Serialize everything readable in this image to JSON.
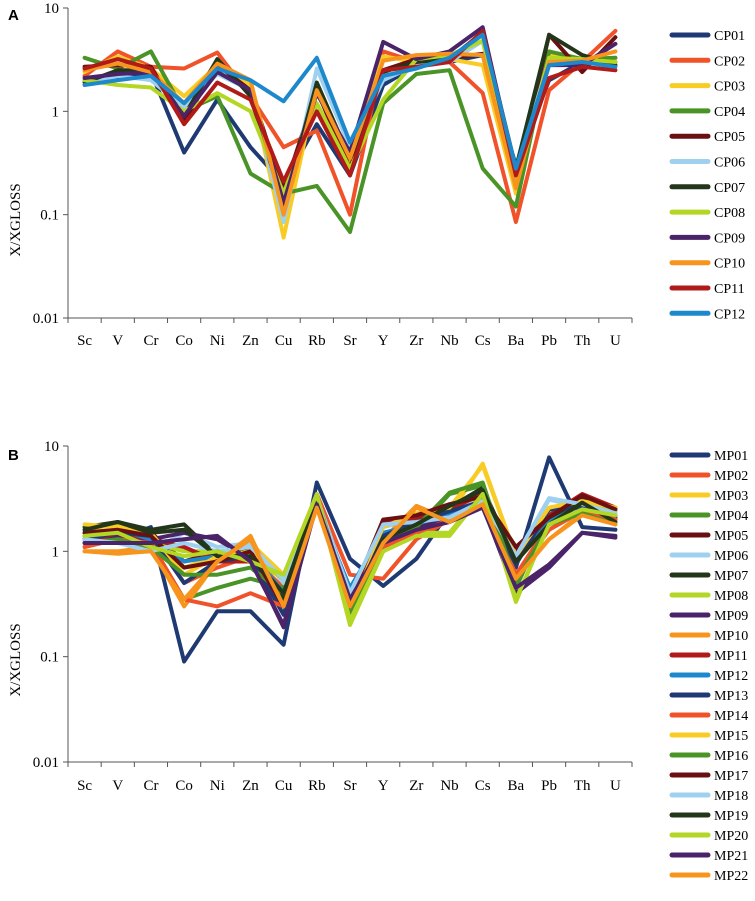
{
  "chart_data": [
    {
      "panel": "A",
      "type": "line",
      "scale": "log",
      "ylabel": "X/XGLOSS",
      "ylim": [
        0.01,
        10
      ],
      "yticks": [
        "0.01",
        "0.1",
        "1",
        "10"
      ],
      "categories": [
        "Sc",
        "V",
        "Cr",
        "Co",
        "Ni",
        "Zn",
        "Cu",
        "Rb",
        "Sr",
        "Y",
        "Zr",
        "Nb",
        "Cs",
        "Ba",
        "Pb",
        "Th",
        "U"
      ],
      "series": [
        {
          "name": "CP01",
          "color": "#1f3a73",
          "values": [
            2.0,
            2.1,
            2.4,
            0.4,
            1.3,
            0.45,
            0.2,
            0.75,
            0.24,
            1.8,
            2.8,
            3.0,
            3.5,
            0.3,
            2.0,
            3.0,
            3.0
          ]
        },
        {
          "name": "CP02",
          "color": "#f0522a",
          "values": [
            2.2,
            3.8,
            2.7,
            2.6,
            3.7,
            1.4,
            0.45,
            0.65,
            0.1,
            3.8,
            3.0,
            3.0,
            1.5,
            0.085,
            1.6,
            3.0,
            6.0
          ]
        },
        {
          "name": "CP03",
          "color": "#f8cc24",
          "values": [
            2.4,
            3.4,
            2.6,
            1.4,
            2.8,
            1.8,
            0.06,
            1.8,
            0.32,
            3.4,
            3.0,
            3.2,
            2.8,
            0.16,
            3.5,
            3.0,
            3.3
          ]
        },
        {
          "name": "CP04",
          "color": "#4a9326",
          "values": [
            3.3,
            2.6,
            3.8,
            1.0,
            1.4,
            0.25,
            0.16,
            0.19,
            0.068,
            1.2,
            2.3,
            2.5,
            0.28,
            0.12,
            3.8,
            3.2,
            3.3
          ]
        },
        {
          "name": "CP05",
          "color": "#6a0f12",
          "values": [
            2.7,
            2.8,
            2.7,
            0.8,
            2.8,
            1.6,
            0.17,
            1.6,
            0.28,
            2.5,
            3.2,
            3.3,
            3.6,
            0.22,
            5.5,
            2.4,
            5.2
          ]
        },
        {
          "name": "CP06",
          "color": "#9fd0f0",
          "values": [
            1.8,
            2.2,
            2.0,
            1.1,
            2.3,
            1.6,
            0.085,
            2.6,
            0.45,
            2.0,
            2.8,
            3.0,
            4.8,
            0.25,
            3.2,
            3.0,
            3.0
          ]
        },
        {
          "name": "CP07",
          "color": "#24361a",
          "values": [
            1.9,
            2.5,
            2.5,
            0.9,
            3.2,
            1.4,
            0.12,
            1.9,
            0.35,
            2.4,
            3.0,
            3.2,
            5.8,
            0.28,
            5.5,
            3.5,
            2.8
          ]
        },
        {
          "name": "CP08",
          "color": "#b4d624",
          "values": [
            2.0,
            1.8,
            1.7,
            1.0,
            1.5,
            1.0,
            0.16,
            1.2,
            0.28,
            1.3,
            3.2,
            3.5,
            4.8,
            0.2,
            3.3,
            3.2,
            3.0
          ]
        },
        {
          "name": "CP09",
          "color": "#4a2369",
          "values": [
            2.1,
            2.3,
            2.4,
            0.9,
            2.4,
            1.6,
            0.13,
            1.5,
            0.4,
            4.7,
            3.2,
            3.8,
            6.5,
            0.25,
            2.8,
            2.8,
            4.5
          ]
        },
        {
          "name": "CP10",
          "color": "#f7941d",
          "values": [
            2.5,
            2.9,
            2.4,
            1.2,
            2.9,
            2.0,
            0.1,
            1.6,
            0.35,
            3.1,
            3.5,
            3.6,
            3.5,
            0.18,
            3.0,
            3.1,
            3.8
          ]
        },
        {
          "name": "CP11",
          "color": "#b01a19",
          "values": [
            2.6,
            3.2,
            2.6,
            0.75,
            1.9,
            1.3,
            0.21,
            1.0,
            0.24,
            2.5,
            2.7,
            3.0,
            6.0,
            0.24,
            2.1,
            2.7,
            2.5
          ]
        },
        {
          "name": "CP12",
          "color": "#1e88cc",
          "values": [
            1.8,
            2.0,
            2.2,
            1.2,
            2.6,
            2.0,
            1.25,
            3.3,
            0.5,
            2.2,
            2.6,
            3.3,
            5.5,
            0.28,
            2.8,
            3.0,
            2.7
          ]
        }
      ]
    },
    {
      "panel": "B",
      "type": "line",
      "scale": "log",
      "ylabel": "X/XGLOSS",
      "ylim": [
        0.01,
        10
      ],
      "yticks": [
        "0.01",
        "0.1",
        "1",
        "10"
      ],
      "categories": [
        "Sc",
        "V",
        "Cr",
        "Co",
        "Ni",
        "Zn",
        "Cu",
        "Rb",
        "Sr",
        "Y",
        "Zr",
        "Nb",
        "Cs",
        "Ba",
        "Pb",
        "Th",
        "U"
      ],
      "series": [
        {
          "name": "MP01",
          "color": "#1f3a73",
          "values": [
            1.3,
            1.3,
            1.7,
            0.09,
            0.27,
            0.27,
            0.13,
            4.5,
            0.85,
            0.47,
            0.85,
            2.4,
            2.8,
            0.7,
            7.8,
            1.7,
            1.6
          ]
        },
        {
          "name": "MP02",
          "color": "#f0522a",
          "values": [
            1.2,
            1.4,
            1.5,
            0.5,
            0.7,
            0.9,
            0.45,
            3.5,
            0.6,
            0.55,
            1.3,
            2.0,
            3.0,
            0.6,
            1.6,
            2.4,
            2.4
          ]
        },
        {
          "name": "MP03",
          "color": "#f8cc24",
          "values": [
            1.6,
            1.8,
            1.4,
            0.7,
            0.9,
            1.2,
            0.6,
            2.7,
            0.4,
            1.2,
            1.8,
            2.2,
            6.8,
            0.9,
            2.4,
            2.8,
            2.6
          ]
        },
        {
          "name": "MP04",
          "color": "#4a9326",
          "values": [
            1.4,
            1.5,
            1.2,
            0.35,
            0.45,
            0.55,
            0.45,
            3.1,
            0.3,
            1.0,
            1.6,
            3.5,
            4.2,
            0.45,
            2.2,
            2.5,
            2.2
          ]
        },
        {
          "name": "MP05",
          "color": "#6a0f12",
          "values": [
            1.5,
            1.6,
            1.5,
            0.8,
            1.0,
            1.0,
            0.3,
            3.0,
            0.35,
            1.9,
            2.1,
            2.7,
            3.4,
            1.0,
            2.0,
            3.2,
            2.5
          ]
        },
        {
          "name": "MP06",
          "color": "#9fd0f0",
          "values": [
            1.4,
            1.3,
            1.0,
            1.5,
            1.1,
            1.2,
            0.5,
            3.3,
            0.4,
            1.7,
            2.0,
            2.2,
            3.2,
            0.9,
            3.1,
            2.6,
            2.4
          ]
        },
        {
          "name": "MP07",
          "color": "#24361a",
          "values": [
            1.7,
            1.9,
            1.6,
            1.8,
            0.9,
            1.0,
            0.35,
            3.3,
            0.3,
            1.4,
            2.0,
            2.6,
            4.0,
            0.8,
            2.0,
            3.0,
            2.0
          ]
        },
        {
          "name": "MP08",
          "color": "#b4d624",
          "values": [
            1.5,
            1.6,
            1.2,
            1.0,
            1.0,
            0.85,
            0.55,
            3.4,
            0.2,
            1.0,
            1.5,
            1.5,
            3.6,
            0.33,
            1.9,
            2.7,
            2.4
          ]
        },
        {
          "name": "MP09",
          "color": "#4a2369",
          "values": [
            1.3,
            1.4,
            1.3,
            1.5,
            1.3,
            0.85,
            0.19,
            3.0,
            0.35,
            1.3,
            1.7,
            2.0,
            2.7,
            0.4,
            0.7,
            1.5,
            1.4
          ]
        },
        {
          "name": "MP10",
          "color": "#f7941d",
          "values": [
            1.0,
            1.0,
            1.1,
            0.3,
            0.8,
            1.4,
            0.3,
            2.8,
            0.3,
            1.3,
            2.7,
            2.0,
            3.0,
            0.6,
            1.3,
            2.3,
            1.9
          ]
        },
        {
          "name": "MP11",
          "color": "#b01a19",
          "values": [
            1.2,
            1.5,
            1.3,
            1.1,
            0.8,
            0.8,
            0.3,
            3.0,
            0.3,
            2.0,
            2.0,
            2.5,
            3.5,
            0.9,
            2.2,
            3.5,
            2.6
          ]
        },
        {
          "name": "MP12",
          "color": "#1e88cc",
          "values": [
            1.4,
            1.6,
            1.3,
            0.8,
            0.9,
            1.0,
            0.4,
            2.7,
            0.45,
            1.5,
            1.8,
            2.3,
            2.9,
            0.8,
            1.9,
            2.8,
            2.2
          ]
        },
        {
          "name": "MP13",
          "color": "#1f3a73",
          "values": [
            1.3,
            1.5,
            1.4,
            0.5,
            0.8,
            0.9,
            0.25,
            3.0,
            0.35,
            1.4,
            1.9,
            2.4,
            3.0,
            0.75,
            2.5,
            2.6,
            2.1
          ]
        },
        {
          "name": "MP14",
          "color": "#f0522a",
          "values": [
            1.1,
            1.3,
            1.2,
            0.35,
            0.3,
            0.4,
            0.3,
            2.6,
            0.4,
            1.1,
            1.5,
            2.0,
            2.8,
            0.6,
            1.8,
            2.4,
            2.0
          ]
        },
        {
          "name": "MP15",
          "color": "#f8cc24",
          "values": [
            1.8,
            1.7,
            1.5,
            0.6,
            0.9,
            1.0,
            0.6,
            3.0,
            0.35,
            1.7,
            2.3,
            2.6,
            6.5,
            0.9,
            2.6,
            3.0,
            2.6
          ]
        },
        {
          "name": "MP16",
          "color": "#4a9326",
          "values": [
            1.2,
            1.3,
            1.1,
            0.6,
            0.6,
            0.7,
            0.4,
            3.2,
            0.25,
            1.2,
            1.7,
            3.6,
            4.5,
            0.5,
            1.8,
            2.3,
            1.8
          ]
        },
        {
          "name": "MP17",
          "color": "#6a0f12",
          "values": [
            1.5,
            1.6,
            1.4,
            0.7,
            0.8,
            1.0,
            0.3,
            3.0,
            0.35,
            2.0,
            2.2,
            2.8,
            3.3,
            1.1,
            2.1,
            3.4,
            2.5
          ]
        },
        {
          "name": "MP18",
          "color": "#9fd0f0",
          "values": [
            1.3,
            1.2,
            1.0,
            1.2,
            1.0,
            1.1,
            0.55,
            3.0,
            0.4,
            1.8,
            1.9,
            2.1,
            3.0,
            0.9,
            3.2,
            2.8,
            2.3
          ]
        },
        {
          "name": "MP19",
          "color": "#24361a",
          "values": [
            1.6,
            1.9,
            1.5,
            1.6,
            0.9,
            0.9,
            0.4,
            3.2,
            0.3,
            1.3,
            1.8,
            2.7,
            3.8,
            0.8,
            1.8,
            2.9,
            1.9
          ]
        },
        {
          "name": "MP20",
          "color": "#b4d624",
          "values": [
            1.4,
            1.5,
            1.1,
            0.9,
            1.0,
            0.8,
            0.6,
            3.5,
            0.22,
            1.0,
            1.4,
            1.4,
            3.5,
            0.35,
            1.8,
            2.5,
            2.2
          ]
        },
        {
          "name": "MP21",
          "color": "#4a2369",
          "values": [
            1.2,
            1.2,
            1.2,
            1.3,
            1.4,
            0.8,
            0.2,
            2.8,
            0.35,
            1.2,
            1.6,
            1.9,
            2.6,
            0.45,
            0.75,
            1.5,
            1.35
          ]
        },
        {
          "name": "MP22",
          "color": "#f7941d",
          "values": [
            1.0,
            0.95,
            1.0,
            0.35,
            0.8,
            1.3,
            0.3,
            2.6,
            0.3,
            1.2,
            2.6,
            1.9,
            2.8,
            0.55,
            1.3,
            2.2,
            1.8
          ]
        }
      ]
    }
  ]
}
